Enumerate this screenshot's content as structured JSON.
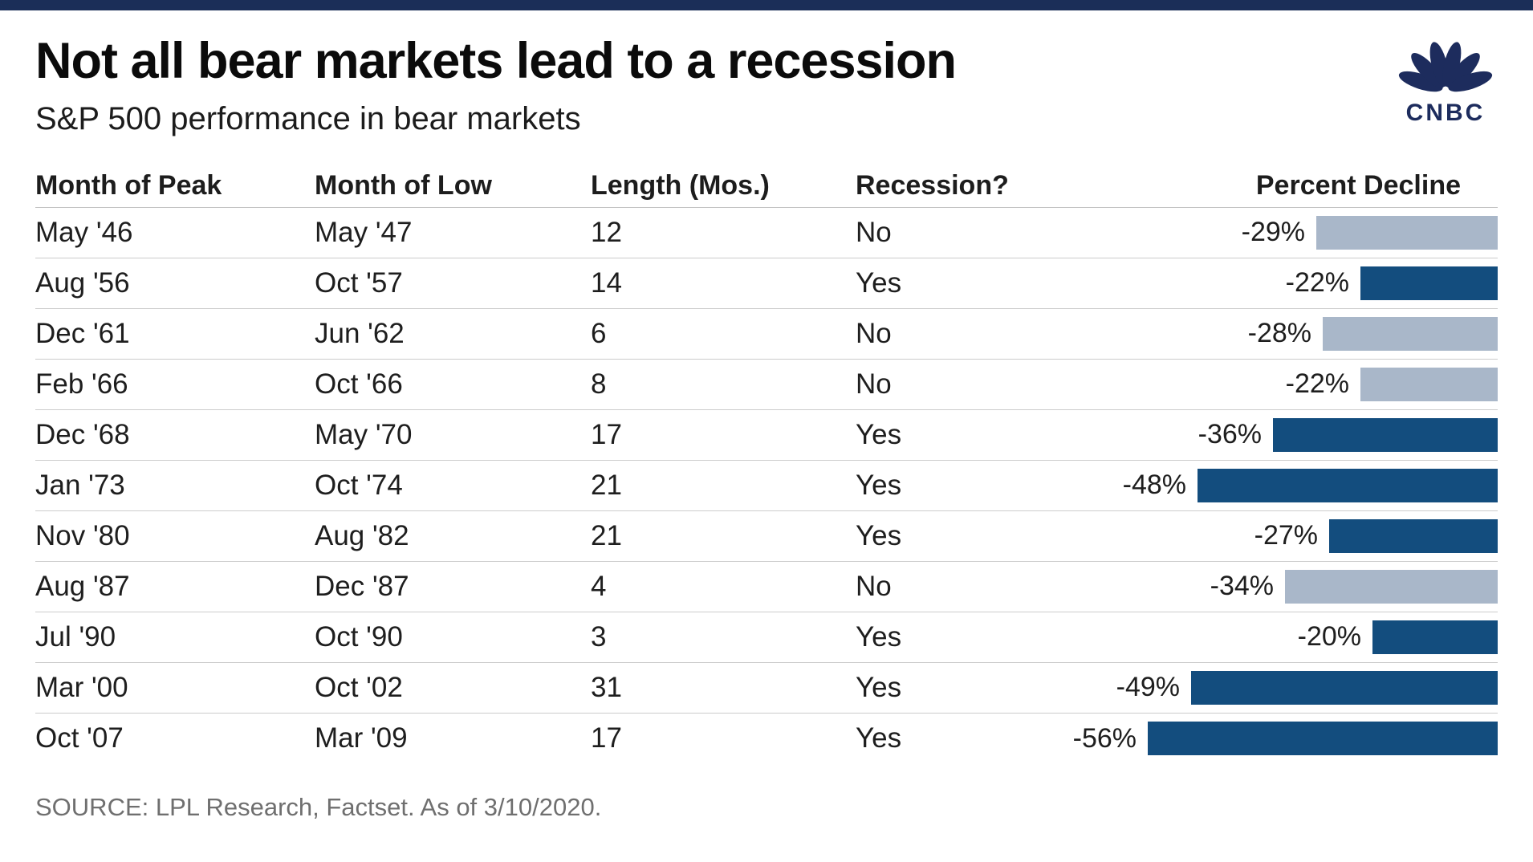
{
  "page": {
    "top_bar_color": "#1b2e58",
    "background": "#ffffff"
  },
  "header": {
    "title": "Not all bear markets lead to a recession",
    "subtitle": "S&P 500 performance in bear markets"
  },
  "logo": {
    "name": "CNBC",
    "color": "#1d2c5d",
    "icon": "peacock-icon"
  },
  "colors": {
    "recession_yes_bar": "#134d7e",
    "recession_no_bar": "#a9b7c9",
    "row_divider": "#cccccc"
  },
  "source_note": "SOURCE: LPL Research, Factset. As of 3/10/2020.",
  "chart_data": {
    "type": "table",
    "title": "Not all bear markets lead to a recession",
    "subtitle": "S&P 500 performance in bear markets",
    "columns": [
      "Month of Peak",
      "Month of Low",
      "Length (Mos.)",
      "Recession?",
      "Percent Decline"
    ],
    "bar_encoding": {
      "column": "Percent Decline",
      "anchor": "right",
      "max_abs_pct": 56,
      "color_by": "Recession?",
      "yes_color": "#134d7e",
      "no_color": "#a9b7c9"
    },
    "rows": [
      {
        "month_of_peak": "May '46",
        "month_of_low": "May '47",
        "length_mos": 12,
        "recession": "No",
        "percent_decline_label": "-29%",
        "percent_decline": -29
      },
      {
        "month_of_peak": "Aug '56",
        "month_of_low": "Oct '57",
        "length_mos": 14,
        "recession": "Yes",
        "percent_decline_label": "-22%",
        "percent_decline": -22
      },
      {
        "month_of_peak": "Dec '61",
        "month_of_low": "Jun '62",
        "length_mos": 6,
        "recession": "No",
        "percent_decline_label": "-28%",
        "percent_decline": -28
      },
      {
        "month_of_peak": "Feb '66",
        "month_of_low": "Oct '66",
        "length_mos": 8,
        "recession": "No",
        "percent_decline_label": "-22%",
        "percent_decline": -22
      },
      {
        "month_of_peak": "Dec '68",
        "month_of_low": "May '70",
        "length_mos": 17,
        "recession": "Yes",
        "percent_decline_label": "-36%",
        "percent_decline": -36
      },
      {
        "month_of_peak": "Jan '73",
        "month_of_low": "Oct '74",
        "length_mos": 21,
        "recession": "Yes",
        "percent_decline_label": "-48%",
        "percent_decline": -48
      },
      {
        "month_of_peak": "Nov '80",
        "month_of_low": "Aug '82",
        "length_mos": 21,
        "recession": "Yes",
        "percent_decline_label": "-27%",
        "percent_decline": -27
      },
      {
        "month_of_peak": "Aug '87",
        "month_of_low": "Dec '87",
        "length_mos": 4,
        "recession": "No",
        "percent_decline_label": "-34%",
        "percent_decline": -34
      },
      {
        "month_of_peak": "Jul '90",
        "month_of_low": "Oct '90",
        "length_mos": 3,
        "recession": "Yes",
        "percent_decline_label": "-20%",
        "percent_decline": -20
      },
      {
        "month_of_peak": "Mar '00",
        "month_of_low": "Oct '02",
        "length_mos": 31,
        "recession": "Yes",
        "percent_decline_label": "-49%",
        "percent_decline": -49
      },
      {
        "month_of_peak": "Oct '07",
        "month_of_low": "Mar '09",
        "length_mos": 17,
        "recession": "Yes",
        "percent_decline_label": "-56%",
        "percent_decline": -56
      }
    ]
  }
}
